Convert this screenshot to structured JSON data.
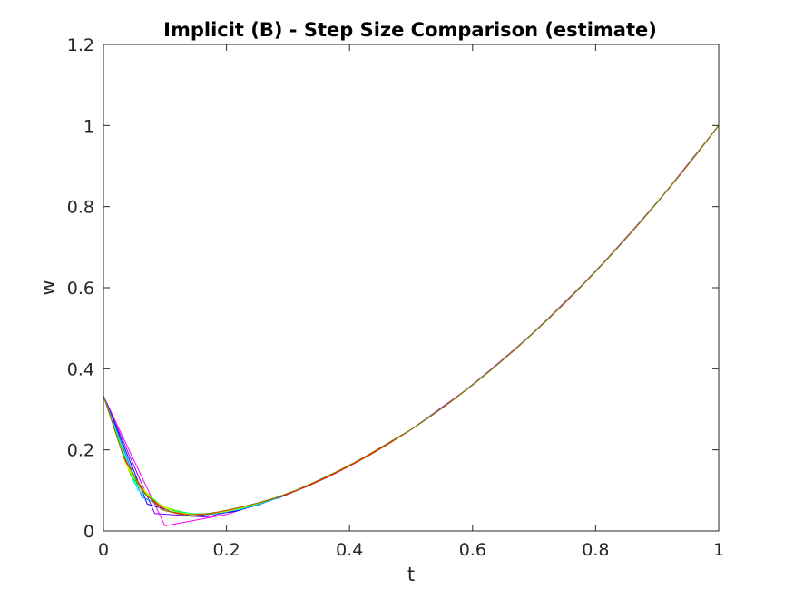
{
  "chart_data": {
    "type": "line",
    "title": "Implicit (B) - Step Size Comparison (estimate)",
    "xlabel": "t",
    "ylabel": "w",
    "xlim": [
      0,
      1
    ],
    "ylim": [
      0,
      1.2
    ],
    "xticks": [
      0,
      0.2,
      0.4,
      0.6,
      0.8,
      1
    ],
    "xtick_labels": [
      "0",
      "0.2",
      "0.4",
      "0.6",
      "0.8",
      "1"
    ],
    "yticks": [
      0,
      0.2,
      0.4,
      0.6,
      0.8,
      1,
      1.2
    ],
    "ytick_labels": [
      "0",
      "0.2",
      "0.4",
      "0.6",
      "0.8",
      "1",
      "1.2"
    ],
    "grid": false,
    "legend": "none",
    "series": [
      {
        "color": "#ff00ff",
        "x": [
          0,
          0.1,
          0.2,
          0.3,
          0.4,
          0.5,
          0.6,
          0.7,
          0.8,
          0.9,
          1
        ],
        "y": [
          0.3333,
          0.0125,
          0.0408,
          0.0904,
          0.1602,
          0.2501,
          0.36,
          0.49,
          0.64,
          0.81,
          1.0
        ]
      },
      {
        "color": "#8000ff",
        "x": [
          0,
          0.0833,
          0.1667,
          0.25,
          0.3333,
          0.4167,
          0.5,
          0.5833,
          0.6667,
          0.75,
          0.8333,
          0.9167,
          1
        ],
        "y": [
          0.3333,
          0.0432,
          0.034,
          0.0632,
          0.1112,
          0.1737,
          0.25,
          0.3403,
          0.4444,
          0.5625,
          0.6944,
          0.8403,
          1.0
        ]
      },
      {
        "color": "#0000ff",
        "x": [
          0,
          0.0714,
          0.1429,
          0.2143,
          0.2857,
          0.3571,
          0.4286,
          0.5,
          0.5714,
          0.6429,
          0.7143,
          0.7857,
          0.8571,
          0.9286,
          1
        ],
        "y": [
          0.3333,
          0.066,
          0.0361,
          0.0481,
          0.0819,
          0.1276,
          0.1837,
          0.25,
          0.3265,
          0.4133,
          0.5102,
          0.6173,
          0.7347,
          0.8622,
          1.0
        ]
      },
      {
        "color": "#0080ff",
        "x": [
          0,
          0.0625,
          0.125,
          0.1875,
          0.25,
          0.3125,
          0.375,
          0.4375,
          0.5,
          0.5625,
          0.625,
          0.6875,
          0.75,
          0.8125,
          0.875,
          0.9375,
          1
        ],
        "y": [
          0.3333,
          0.0837,
          0.041,
          0.0429,
          0.0641,
          0.0983,
          0.1407,
          0.1915,
          0.25,
          0.3164,
          0.3906,
          0.4727,
          0.5625,
          0.6602,
          0.7656,
          0.8789,
          1.0
        ]
      },
      {
        "color": "#00ffff",
        "x": [
          0,
          0.0556,
          0.1111,
          0.1667,
          0.2222,
          0.2778,
          0.3333,
          0.3889,
          0.4444,
          0.5,
          0.5556,
          0.6111,
          0.6667,
          0.7222,
          0.7778,
          0.8333,
          0.8889,
          0.9444,
          1
        ],
        "y": [
          0.3333,
          0.1014,
          0.048,
          0.0407,
          0.0534,
          0.0786,
          0.1121,
          0.1521,
          0.1978,
          0.2501,
          0.3087,
          0.3734,
          0.4444,
          0.5216,
          0.6049,
          0.6944,
          0.7901,
          0.892,
          1.0
        ]
      },
      {
        "color": "#00ff80",
        "x": [
          0,
          0.05,
          0.1,
          0.15,
          0.2,
          0.25,
          0.3,
          0.35,
          0.4,
          0.45,
          0.5,
          0.55,
          0.6,
          0.65,
          0.7,
          0.75,
          0.8,
          0.85,
          0.9,
          0.95,
          1
        ],
        "y": [
          0.3333,
          0.1181,
          0.0554,
          0.0408,
          0.0471,
          0.0663,
          0.0918,
          0.1236,
          0.1603,
          0.2026,
          0.2501,
          0.3025,
          0.36,
          0.4225,
          0.49,
          0.5625,
          0.64,
          0.7225,
          0.81,
          0.9025,
          1.0
        ]
      },
      {
        "color": "#00ff00",
        "x": [
          0,
          0.0455,
          0.0909,
          0.1364,
          0.1818,
          0.2273,
          0.2727,
          0.3182,
          0.3636,
          0.4091,
          0.4545,
          0.5,
          0.5455,
          0.5909,
          0.6364,
          0.6818,
          0.7273,
          0.7727,
          0.8182,
          0.8636,
          0.9091,
          0.9545,
          1
        ],
        "y": [
          0.3333,
          0.133,
          0.063,
          0.0417,
          0.0434,
          0.0572,
          0.0778,
          0.103,
          0.1327,
          0.1675,
          0.2067,
          0.2501,
          0.2976,
          0.3492,
          0.405,
          0.4649,
          0.5289,
          0.5971,
          0.6694,
          0.7458,
          0.8264,
          0.9111,
          1.0
        ]
      },
      {
        "color": "#80ff00",
        "x": [
          0,
          0.0417,
          0.0833,
          0.125,
          0.1667,
          0.2083,
          0.25,
          0.2917,
          0.3333,
          0.375,
          0.4167,
          0.4583,
          0.5,
          0.5417,
          0.5833,
          0.625,
          0.6667,
          0.7083,
          0.75,
          0.7917,
          0.8333,
          0.875,
          0.9167,
          0.9583,
          1
        ],
        "y": [
          0.3333,
          0.1466,
          0.0708,
          0.0433,
          0.0409,
          0.051,
          0.0675,
          0.0878,
          0.1123,
          0.1411,
          0.174,
          0.2106,
          0.2501,
          0.2936,
          0.3403,
          0.3906,
          0.4444,
          0.5017,
          0.5625,
          0.6268,
          0.6944,
          0.7656,
          0.8403,
          0.9183,
          1.0
        ]
      },
      {
        "color": "#ffff00",
        "x": [
          0,
          0.0385,
          0.0769,
          0.1154,
          0.1538,
          0.1923,
          0.2308,
          0.2692,
          0.3077,
          0.3462,
          0.3846,
          0.4231,
          0.4615,
          0.5,
          0.5385,
          0.5769,
          0.6154,
          0.6538,
          0.6923,
          0.7308,
          0.7692,
          0.8077,
          0.8462,
          0.8846,
          0.9231,
          0.9615,
          1
        ],
        "y": [
          0.3333,
          0.159,
          0.0782,
          0.0454,
          0.04,
          0.0467,
          0.06,
          0.0768,
          0.0968,
          0.121,
          0.1485,
          0.1792,
          0.2133,
          0.2501,
          0.2899,
          0.3328,
          0.3787,
          0.4275,
          0.4793,
          0.5341,
          0.5917,
          0.6524,
          0.716,
          0.7825,
          0.8521,
          0.9246,
          1.0
        ]
      },
      {
        "color": "#ff8000",
        "x": [
          0,
          0.0357,
          0.0714,
          0.1071,
          0.1429,
          0.1786,
          0.2143,
          0.25,
          0.2857,
          0.3214,
          0.3571,
          0.3929,
          0.4286,
          0.4643,
          0.5,
          0.5357,
          0.5714,
          0.6071,
          0.6429,
          0.6786,
          0.7143,
          0.75,
          0.7857,
          0.8214,
          0.8571,
          0.8929,
          0.9286,
          0.9643,
          1
        ],
        "y": [
          0.3333,
          0.1702,
          0.0856,
          0.0476,
          0.0399,
          0.0436,
          0.0548,
          0.0684,
          0.0848,
          0.1046,
          0.1284,
          0.1547,
          0.1837,
          0.2158,
          0.2501,
          0.287,
          0.3265,
          0.3686,
          0.4133,
          0.4605,
          0.5102,
          0.5625,
          0.6173,
          0.6747,
          0.7347,
          0.7972,
          0.8622,
          0.9298,
          1.0
        ]
      },
      {
        "color": "#ff0000",
        "x": [
          0,
          0.0333,
          0.0667,
          0.1,
          0.1333,
          0.1667,
          0.2,
          0.2333,
          0.2667,
          0.3,
          0.3333,
          0.3667,
          0.4,
          0.4333,
          0.4667,
          0.5,
          0.5333,
          0.5667,
          0.6,
          0.6333,
          0.6667,
          0.7,
          0.7333,
          0.7667,
          0.8,
          0.8333,
          0.8667,
          0.9,
          0.9333,
          0.9667,
          1
        ],
        "y": [
          0.3333,
          0.1805,
          0.093,
          0.0502,
          0.0402,
          0.0412,
          0.0505,
          0.0621,
          0.0752,
          0.0912,
          0.1112,
          0.1345,
          0.1601,
          0.1879,
          0.218,
          0.2501,
          0.2845,
          0.3211,
          0.36,
          0.4011,
          0.4444,
          0.49,
          0.5378,
          0.5878,
          0.64,
          0.6944,
          0.7511,
          0.81,
          0.8711,
          0.9344,
          1.0
        ]
      },
      {
        "color": "#808000",
        "x": [
          0,
          0.03125,
          0.0625,
          0.09375,
          0.125,
          0.15625,
          0.1875,
          0.21875,
          0.25,
          0.28125,
          0.3125,
          0.34375,
          0.375,
          0.40625,
          0.4375,
          0.46875,
          0.5,
          0.53125,
          0.5625,
          0.59375,
          0.625,
          0.65625,
          0.6875,
          0.71875,
          0.75,
          0.78125,
          0.8125,
          0.84375,
          0.875,
          0.90625,
          0.9375,
          0.96875,
          1
        ],
        "y": [
          0.3333,
          0.1898,
          0.1002,
          0.053,
          0.0406,
          0.0396,
          0.0472,
          0.0571,
          0.0685,
          0.0825,
          0.1002,
          0.121,
          0.1433,
          0.1676,
          0.1941,
          0.2224,
          0.2501,
          0.2822,
          0.3164,
          0.3525,
          0.3906,
          0.4307,
          0.4727,
          0.5166,
          0.5625,
          0.6104,
          0.6602,
          0.7119,
          0.7656,
          0.8213,
          0.8789,
          0.9385,
          1.0
        ]
      }
    ]
  }
}
